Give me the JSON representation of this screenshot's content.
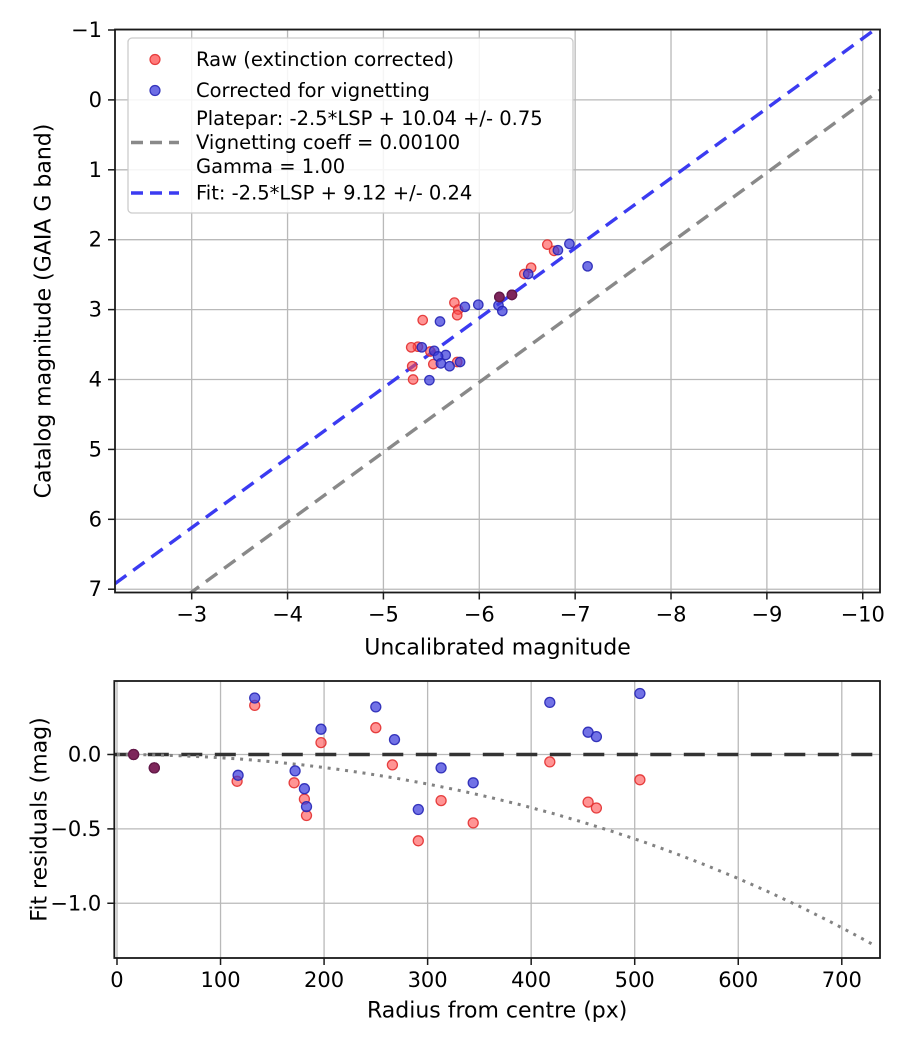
{
  "figure": {
    "background": "#ffffff",
    "description": "Photometric calibration figure with two stacked plots"
  },
  "colors": {
    "raw_fill": "#ff4d4d",
    "raw_edge": "#e32f2f",
    "corrected_fill": "#3c3cdc",
    "corrected_edge": "#2525b5",
    "overlap_fill": "#7e2456",
    "overlap_edge": "#641a45",
    "platepar_line": "#7f7f7f",
    "fit_line": "#2b2bf0",
    "zero_line": "#333333",
    "model_curve": "#828282",
    "grid": "#b9b9b9",
    "frame": "#1a1a1a",
    "legend_border": "#cccccc",
    "text": "#000000"
  },
  "chart_data": [
    {
      "type": "scatter",
      "name": "magnitude-calibration-plot",
      "xlabel": "Uncalibrated magnitude",
      "ylabel": "Catalog magnitude (GAIA G band)",
      "x_inverted": true,
      "y_inverted": true,
      "xlim": [
        -2.2,
        -10.18
      ],
      "ylim": [
        -1.007,
        7.047
      ],
      "grid": true,
      "xticks": {
        "values": [
          -3,
          -4,
          -5,
          -6,
          -7,
          -8,
          -9,
          -10
        ],
        "labels": [
          "−3",
          "−4",
          "−5",
          "−6",
          "−7",
          "−8",
          "−9",
          "−10"
        ]
      },
      "yticks": {
        "values": [
          -1,
          0,
          1,
          2,
          3,
          4,
          5,
          6,
          7
        ],
        "labels": [
          "−1",
          "0",
          "1",
          "2",
          "3",
          "4",
          "5",
          "6",
          "7"
        ]
      },
      "legend": {
        "position": "upper left",
        "entries": [
          {
            "marker": "dot",
            "color_key": "raw_fill",
            "label_lines": [
              "Raw (extinction corrected)"
            ]
          },
          {
            "marker": "dot",
            "color_key": "corrected_fill",
            "label_lines": [
              "Corrected for vignetting"
            ]
          },
          {
            "marker": "dash",
            "color_key": "platepar_line",
            "label_lines": [
              "Platepar: -2.5*LSP + 10.04 +/- 0.75",
              "Vignetting coeff = 0.00100",
              "Gamma = 1.00"
            ]
          },
          {
            "marker": "dash",
            "color_key": "fit_line",
            "label_lines": [
              "Fit: -2.5*LSP + 9.12 +/- 0.24"
            ]
          }
        ]
      },
      "series": [
        {
          "name": "Raw (extinction corrected)",
          "kind": "scatter",
          "color_key": "raw_fill",
          "points": [
            [
              -6.71,
              2.07
            ],
            [
              -6.78,
              2.16
            ],
            [
              -6.54,
              2.4
            ],
            [
              -6.47,
              2.49
            ],
            [
              -6.34,
              2.79
            ],
            [
              -6.21,
              2.82
            ],
            [
              -5.74,
              2.9
            ],
            [
              -5.78,
              3.0
            ],
            [
              -5.77,
              3.08
            ],
            [
              -5.41,
              3.15
            ],
            [
              -5.36,
              3.53
            ],
            [
              -5.29,
              3.54
            ],
            [
              -5.49,
              3.6
            ],
            [
              -5.77,
              3.75
            ],
            [
              -5.52,
              3.78
            ],
            [
              -5.3,
              3.81
            ],
            [
              -5.31,
              4.0
            ]
          ]
        },
        {
          "name": "Corrected for vignetting",
          "kind": "scatter",
          "color_key": "corrected_fill",
          "points": [
            [
              -6.94,
              2.06
            ],
            [
              -6.82,
              2.15
            ],
            [
              -7.13,
              2.38
            ],
            [
              -6.51,
              2.49
            ],
            [
              -6.34,
              2.79
            ],
            [
              -6.21,
              2.82
            ],
            [
              -6.2,
              2.94
            ],
            [
              -6.24,
              3.02
            ],
            [
              -5.99,
              2.93
            ],
            [
              -5.85,
              2.96
            ],
            [
              -5.59,
              3.17
            ],
            [
              -5.4,
              3.54
            ],
            [
              -5.53,
              3.59
            ],
            [
              -5.65,
              3.65
            ],
            [
              -5.57,
              3.67
            ],
            [
              -5.8,
              3.75
            ],
            [
              -5.6,
              3.77
            ],
            [
              -5.69,
              3.81
            ],
            [
              -5.48,
              4.01
            ]
          ]
        },
        {
          "name": "overlapping raw+corrected",
          "kind": "scatter",
          "color_key": "overlap_fill",
          "points": [
            [
              -6.34,
              2.79
            ],
            [
              -6.21,
              2.82
            ]
          ]
        },
        {
          "name": "Platepar: -2.5*LSP + 10.04 +/- 0.75",
          "kind": "line",
          "style": "dashed",
          "color_key": "platepar_line",
          "slope": 1,
          "intercept": 10.04
        },
        {
          "name": "Fit: -2.5*LSP + 9.12 +/- 0.24",
          "kind": "line",
          "style": "dashed",
          "color_key": "fit_line",
          "slope": 1,
          "intercept": 9.12
        }
      ]
    },
    {
      "type": "scatter",
      "name": "fit-residuals-plot",
      "xlabel": "Radius from centre (px)",
      "ylabel": "Fit residuals (mag)",
      "x_inverted": false,
      "y_inverted": false,
      "xlim": [
        -2.6,
        736.9
      ],
      "ylim": [
        -1.368,
        0.494
      ],
      "grid": true,
      "xticks": {
        "values": [
          0,
          100,
          200,
          300,
          400,
          500,
          600,
          700
        ],
        "labels": [
          "0",
          "100",
          "200",
          "300",
          "400",
          "500",
          "600",
          "700"
        ]
      },
      "yticks": {
        "values": [
          0,
          -0.5,
          -1.0
        ],
        "labels": [
          "0.0",
          "−0.5",
          "−1.0"
        ]
      },
      "series": [
        {
          "name": "raw residuals",
          "kind": "scatter",
          "color_key": "raw_fill",
          "points": [
            [
              16,
              0.0
            ],
            [
              36,
              -0.09
            ],
            [
              116,
              -0.18
            ],
            [
              133,
              0.33
            ],
            [
              171,
              -0.19
            ],
            [
              181,
              -0.3
            ],
            [
              183,
              -0.41
            ],
            [
              197,
              0.08
            ],
            [
              250,
              0.18
            ],
            [
              266,
              -0.07
            ],
            [
              291,
              -0.58
            ],
            [
              313,
              -0.31
            ],
            [
              344,
              -0.46
            ],
            [
              418,
              -0.05
            ],
            [
              455,
              -0.32
            ],
            [
              463,
              -0.36
            ],
            [
              505,
              -0.17
            ]
          ]
        },
        {
          "name": "corrected residuals",
          "kind": "scatter",
          "color_key": "corrected_fill",
          "points": [
            [
              16,
              0.0
            ],
            [
              36,
              -0.09
            ],
            [
              117,
              -0.14
            ],
            [
              133,
              0.38
            ],
            [
              172,
              -0.11
            ],
            [
              181,
              -0.23
            ],
            [
              183,
              -0.35
            ],
            [
              197,
              0.17
            ],
            [
              250,
              0.32
            ],
            [
              268,
              0.1
            ],
            [
              291,
              -0.37
            ],
            [
              313,
              -0.09
            ],
            [
              344,
              -0.19
            ],
            [
              418,
              0.35
            ],
            [
              455,
              0.15
            ],
            [
              463,
              0.12
            ],
            [
              505,
              0.41
            ]
          ]
        },
        {
          "name": "overlapping raw+corrected",
          "kind": "scatter",
          "color_key": "overlap_fill",
          "points": [
            [
              16,
              0.0
            ],
            [
              36,
              -0.09
            ]
          ]
        },
        {
          "name": "zero residual line",
          "kind": "hline",
          "style": "dashed",
          "color_key": "zero_line",
          "y": 0
        },
        {
          "name": "vignetting model curve",
          "kind": "curve",
          "style": "dotted",
          "color_key": "model_curve",
          "points": [
            [
              0,
              0
            ],
            [
              30,
              -0.002
            ],
            [
              60,
              -0.0078
            ],
            [
              90,
              -0.0176
            ],
            [
              120,
              -0.0313
            ],
            [
              150,
              -0.049
            ],
            [
              180,
              -0.0707
            ],
            [
              210,
              -0.0965
            ],
            [
              240,
              -0.1263
            ],
            [
              270,
              -0.1603
            ],
            [
              300,
              -0.1985
            ],
            [
              330,
              -0.2409
            ],
            [
              360,
              -0.2877
            ],
            [
              390,
              -0.339
            ],
            [
              420,
              -0.3949
            ],
            [
              450,
              -0.4554
            ],
            [
              480,
              -0.5208
            ],
            [
              510,
              -0.5911
            ],
            [
              540,
              -0.6666
            ],
            [
              570,
              -0.7474
            ],
            [
              600,
              -0.8339
            ],
            [
              630,
              -0.9257
            ],
            [
              660,
              -1.0238
            ],
            [
              690,
              -1.128
            ],
            [
              720,
              -1.239
            ],
            [
              733,
              -1.2887
            ]
          ]
        }
      ]
    }
  ]
}
